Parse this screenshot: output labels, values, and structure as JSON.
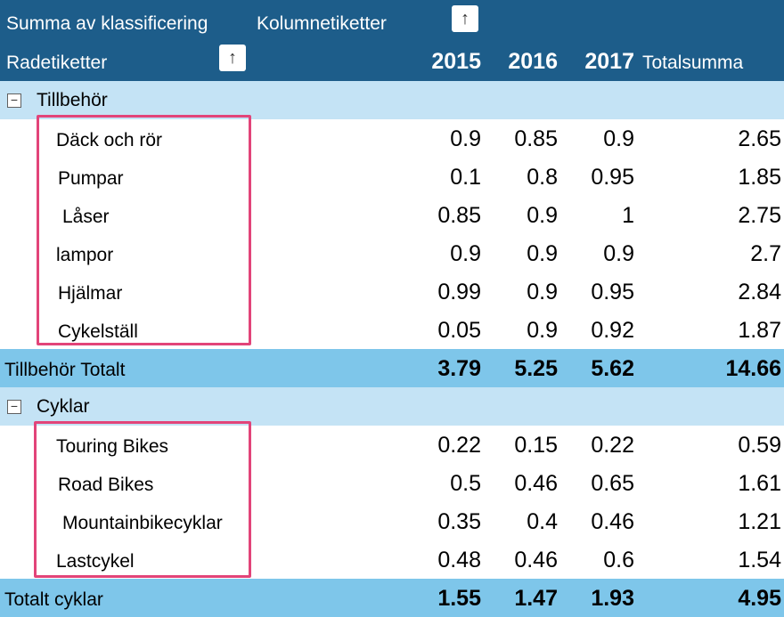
{
  "header": {
    "values_label": "Summa av klassificering",
    "column_labels": "Kolumnetiketter",
    "row_labels": "Radetiketter",
    "years": [
      "2015",
      "2016",
      "2017"
    ],
    "grand_total_label": "Totalsumma"
  },
  "groups": [
    {
      "name": "Tillbehör",
      "collapse_symbol": "−",
      "items": [
        {
          "label": "Däck och rör",
          "values": [
            "0.9",
            "0.85",
            "0.9",
            "2.65"
          ]
        },
        {
          "label": "Pumpar",
          "values": [
            "0.1",
            "0.8",
            "0.95",
            "1.85"
          ]
        },
        {
          "label": "Låser",
          "values": [
            "0.85",
            "0.9",
            "1",
            "2.75"
          ]
        },
        {
          "label": "lampor",
          "values": [
            "0.9",
            "0.9",
            "0.9",
            "2.7"
          ]
        },
        {
          "label": "Hjälmar",
          "values": [
            "0.99",
            "0.9",
            "0.95",
            "2.84"
          ]
        },
        {
          "label": "Cykelställ",
          "values": [
            "0.05",
            "0.9",
            "0.92",
            "1.87"
          ]
        }
      ],
      "total": {
        "label": "Tillbehör Totalt",
        "values": [
          "3.79",
          "5.25",
          "5.62",
          "14.66"
        ]
      }
    },
    {
      "name": "Cyklar",
      "collapse_symbol": "−",
      "items": [
        {
          "label": "Touring Bikes",
          "values": [
            "0.22",
            "0.15",
            "0.22",
            "0.59"
          ]
        },
        {
          "label": "Road Bikes",
          "values": [
            "0.5",
            "0.46",
            "0.65",
            "1.61"
          ]
        },
        {
          "label": "Mountainbikecyklar",
          "values": [
            "0.35",
            "0.4",
            "0.46",
            "1.21"
          ]
        },
        {
          "label": "Lastcykel",
          "values": [
            "0.48",
            "0.46",
            "0.6",
            "1.54"
          ]
        }
      ],
      "total": {
        "label": "Totalt cyklar",
        "values": [
          "1.55",
          "1.47",
          "1.93",
          "4.95"
        ]
      }
    }
  ],
  "icons": {
    "sort": "sort-ascending-arrow-icon",
    "collapse": "collapse-minus-icon"
  },
  "colors": {
    "header_bg": "#1d5d8a",
    "group_bg": "#c4e3f5",
    "total_bg": "#7ec6ea",
    "highlight": "#e24479"
  }
}
